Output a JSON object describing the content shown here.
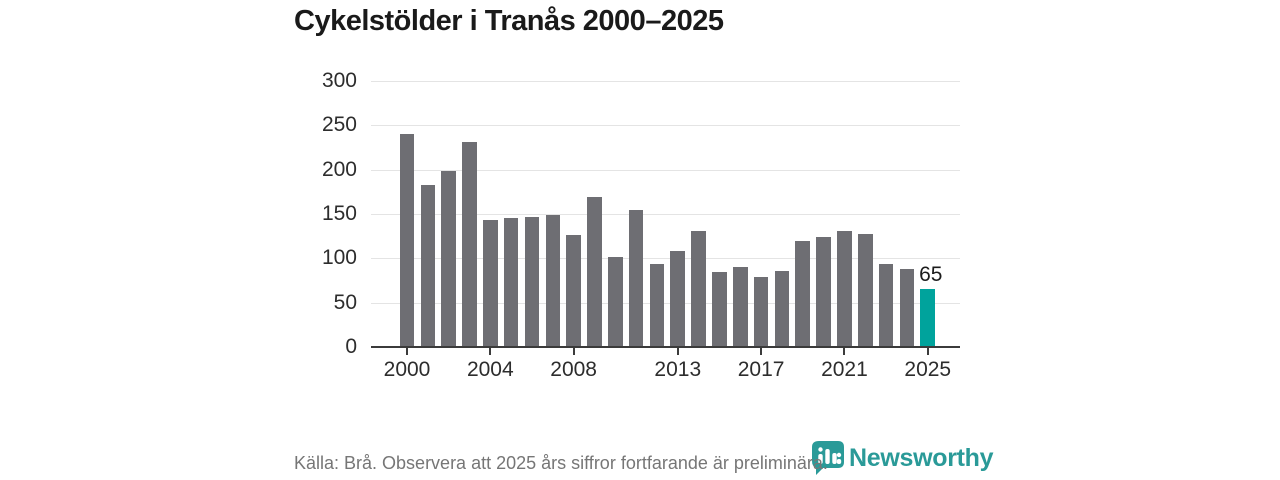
{
  "header": {
    "title": "Cykelstölder i Tranås 2000–2025"
  },
  "chart_data": {
    "type": "bar",
    "title": "Cykelstölder i Tranås 2000–2025",
    "x": [
      2000,
      2001,
      2002,
      2003,
      2004,
      2005,
      2006,
      2007,
      2008,
      2009,
      2010,
      2011,
      2012,
      2013,
      2014,
      2015,
      2016,
      2017,
      2018,
      2019,
      2020,
      2021,
      2022,
      2023,
      2024,
      2025
    ],
    "values": [
      240,
      183,
      199,
      231,
      143,
      146,
      147,
      149,
      126,
      169,
      101,
      154,
      94,
      108,
      131,
      85,
      90,
      79,
      86,
      120,
      124,
      131,
      128,
      94,
      88,
      65
    ],
    "xticks": [
      2000,
      2004,
      2008,
      2013,
      2017,
      2021,
      2025
    ],
    "yticks": [
      0,
      50,
      100,
      150,
      200,
      250,
      300
    ],
    "ylim": [
      0,
      300
    ],
    "grid": "horizontal",
    "legend": "none",
    "bar_color": "#6e6e73",
    "highlight_year": 2025,
    "highlight_color": "#00a39c",
    "data_labels": [
      {
        "year": 2025,
        "text": "65"
      }
    ]
  },
  "footer": {
    "source_note": "Källa: Brå. Observera att 2025 års siffror fortfarande är preliminära.",
    "brand": {
      "name": "Newsworthy",
      "color": "#2a9a98",
      "icon": "newsworthy-logo-icon"
    }
  }
}
